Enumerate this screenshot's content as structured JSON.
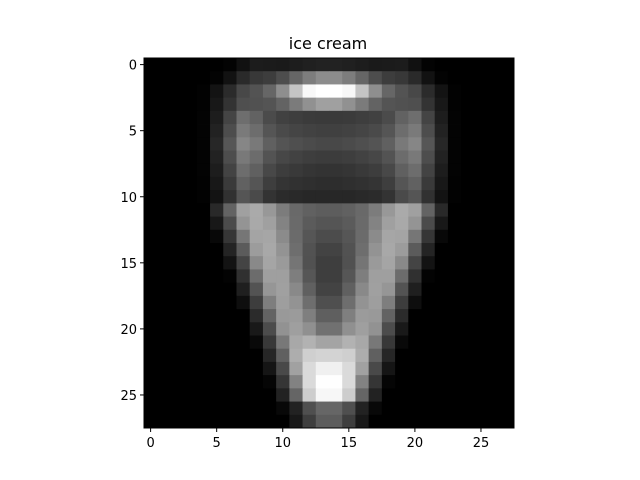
{
  "chart_data": {
    "type": "heatmap",
    "title": "ice cream",
    "xlabel": "",
    "ylabel": "",
    "colormap": "gray",
    "value_range": [
      0,
      1
    ],
    "xlim": [
      -0.5,
      27.5
    ],
    "ylim": [
      27.5,
      -0.5
    ],
    "x_ticks": [
      0,
      5,
      10,
      15,
      20,
      25
    ],
    "y_ticks": [
      0,
      5,
      10,
      15,
      20,
      25
    ],
    "rows": 28,
    "cols": 28
  }
}
